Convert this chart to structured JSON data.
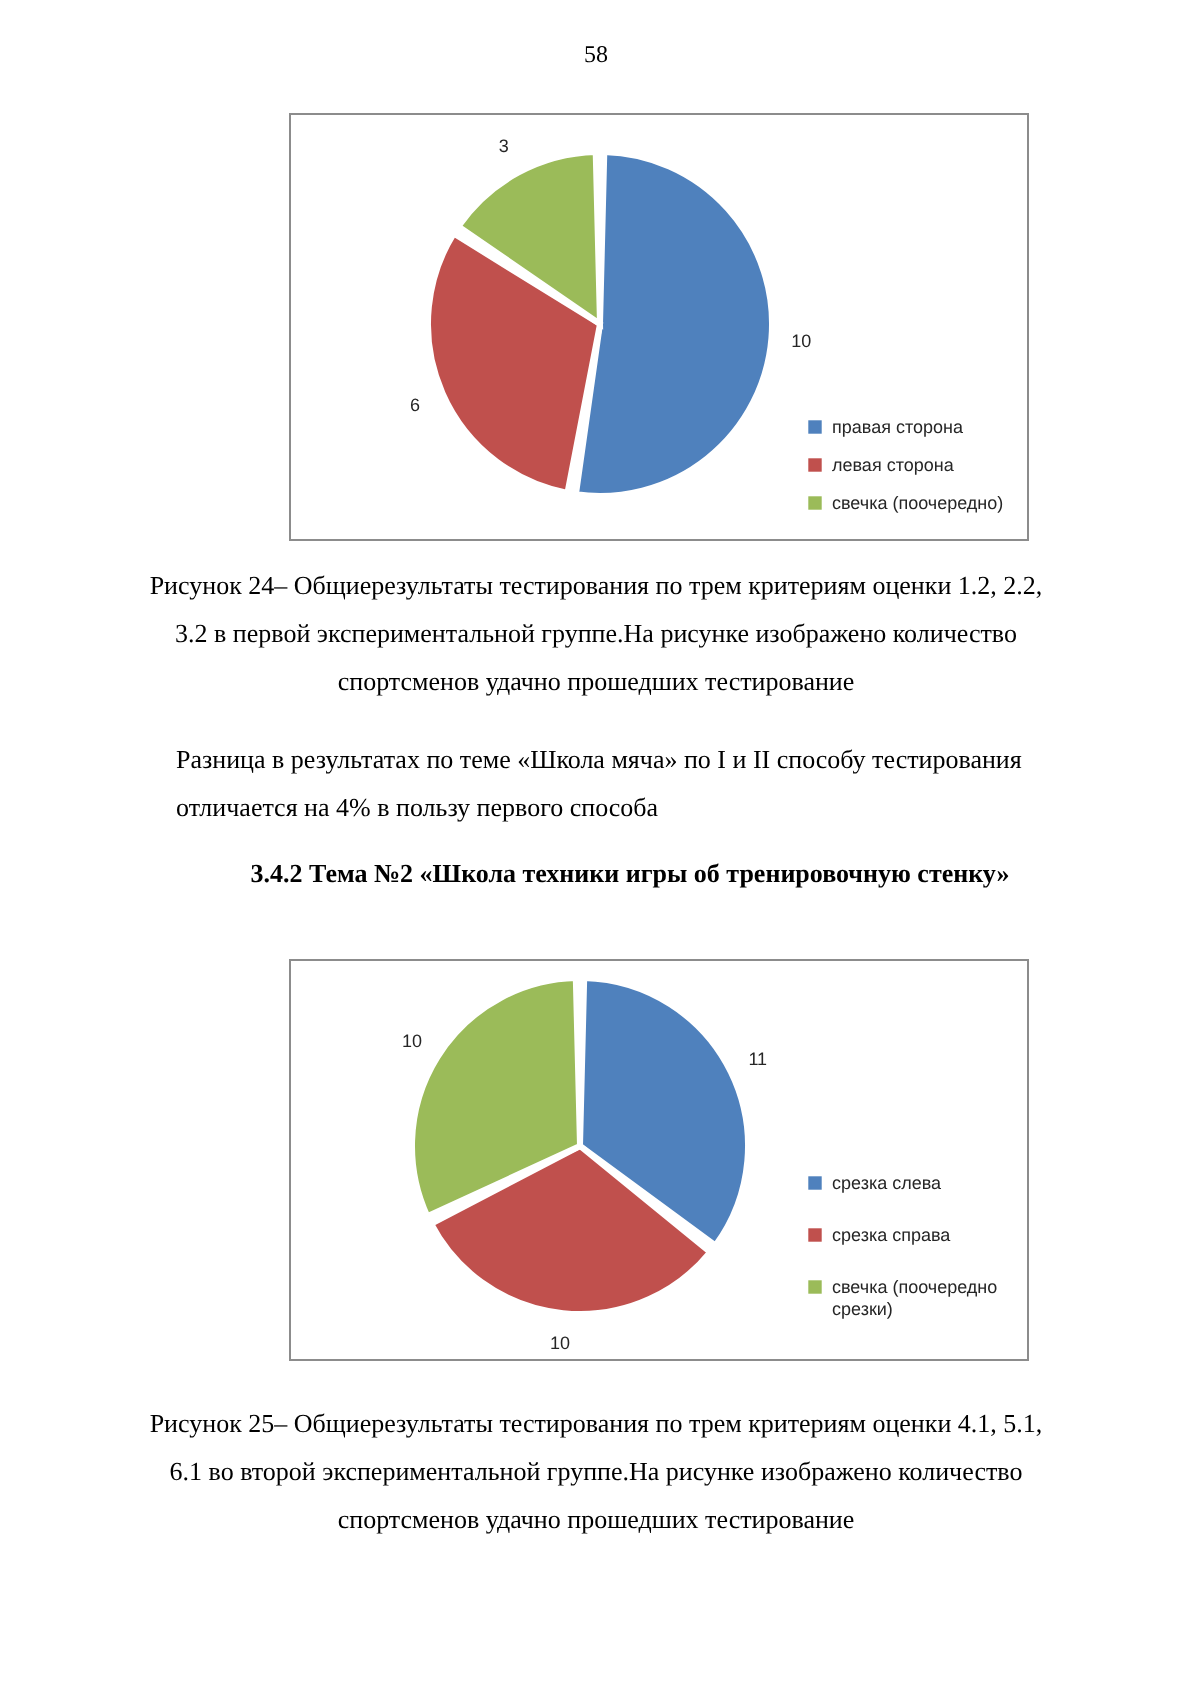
{
  "chart_data": [
    {
      "type": "pie",
      "categories": [
        "правая сторона",
        "левая сторона",
        "свечка (поочередно)"
      ],
      "values": [
        10,
        6,
        3
      ],
      "colors": [
        "#4f81bd",
        "#c0504d",
        "#9bbb59"
      ],
      "data_labels": true,
      "legend": "right",
      "annotations": [
        "58",
        "Рисунок 24– Общиерезультаты тестирования по трем критериям оценки 1.2, 2.2, 3.2 в первой экспериментальной группе.На рисунке изображено количество спортсменов удачно прошедших тестирование",
        "Разница в результатах по теме «Школа мяча» по I и II способу тестирования отличается на 4% в пользу первого способа"
      ]
    },
    {
      "type": "pie",
      "title": "3.4.2 Тема №2 «Школа техники игры об тренировочную стенку»",
      "categories": [
        "срезка слева",
        "срезка справа",
        "свечка (поочередно срезки)"
      ],
      "values": [
        11,
        10,
        10
      ],
      "colors": [
        "#4f81bd",
        "#c0504d",
        "#9bbb59"
      ],
      "data_labels": true,
      "legend": "right",
      "annotations": [
        "Рисунок 25– Общиерезультаты тестирования по трем критериям оценки 4.1, 5.1, 6.1 во второй экспериментальной группе.На рисунке изображено количество спортсменов удачно прошедших тестирование"
      ]
    }
  ]
}
